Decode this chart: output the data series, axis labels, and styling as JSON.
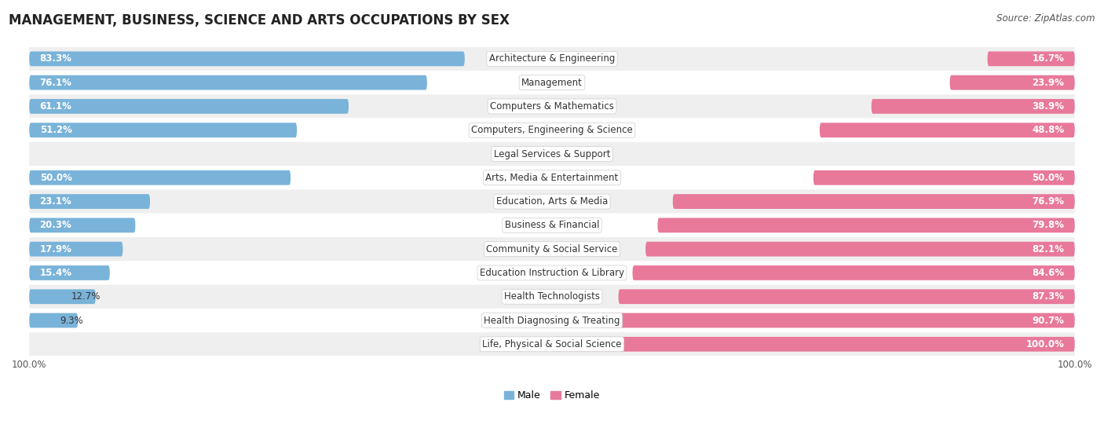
{
  "title": "MANAGEMENT, BUSINESS, SCIENCE AND ARTS OCCUPATIONS BY SEX",
  "source": "Source: ZipAtlas.com",
  "categories": [
    "Architecture & Engineering",
    "Management",
    "Computers & Mathematics",
    "Computers, Engineering & Science",
    "Legal Services & Support",
    "Arts, Media & Entertainment",
    "Education, Arts & Media",
    "Business & Financial",
    "Community & Social Service",
    "Education Instruction & Library",
    "Health Technologists",
    "Health Diagnosing & Treating",
    "Life, Physical & Social Science"
  ],
  "male": [
    83.3,
    76.1,
    61.1,
    51.2,
    0.0,
    50.0,
    23.1,
    20.3,
    17.9,
    15.4,
    12.7,
    9.3,
    0.0
  ],
  "female": [
    16.7,
    23.9,
    38.9,
    48.8,
    0.0,
    50.0,
    76.9,
    79.8,
    82.1,
    84.6,
    87.3,
    90.7,
    100.0
  ],
  "male_color": "#7ab3d9",
  "female_color": "#e8799a",
  "male_label": "Male",
  "female_label": "Female",
  "background_row_odd": "#efefef",
  "background_row_even": "#ffffff",
  "bar_height": 0.62,
  "title_fontsize": 12,
  "label_fontsize": 8.5,
  "tick_fontsize": 8.5,
  "source_fontsize": 8.5,
  "legend_fontsize": 9,
  "inside_threshold": 15
}
